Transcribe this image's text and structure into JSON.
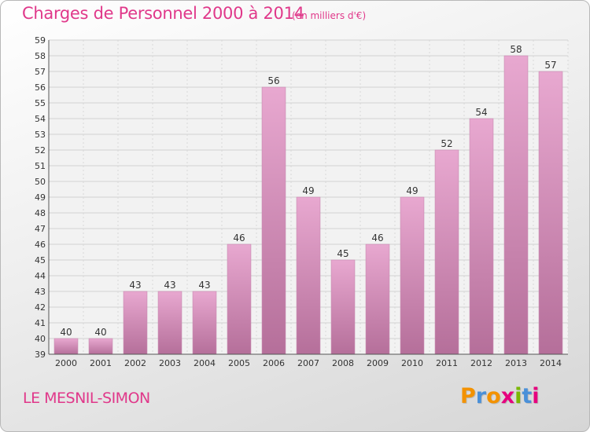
{
  "header": {
    "title": "Charges de Personnel 2000 à 2014",
    "unit": "(en milliers d'€)"
  },
  "footer": {
    "commune": "LE MESNIL-SIMON",
    "logo_text": "Proxiti"
  },
  "colors": {
    "accent": "#e0388a",
    "bar_top": "#e8a8d0",
    "bar_bottom": "#b56f9a",
    "logo_letters": [
      "#f39200",
      "#4a90d9",
      "#f39200",
      "#e6007e",
      "#7ab800",
      "#4a90d9",
      "#e6007e"
    ]
  },
  "chart_data": {
    "type": "bar",
    "categories": [
      "2000",
      "2001",
      "2002",
      "2003",
      "2004",
      "2005",
      "2006",
      "2007",
      "2008",
      "2009",
      "2010",
      "2011",
      "2012",
      "2013",
      "2014"
    ],
    "values": [
      40,
      40,
      43,
      43,
      43,
      46,
      56,
      49,
      45,
      46,
      49,
      52,
      54,
      58,
      57
    ],
    "ylim": [
      39,
      59
    ],
    "yticks": [
      39,
      40,
      41,
      42,
      43,
      44,
      45,
      46,
      47,
      48,
      49,
      50,
      51,
      52,
      53,
      54,
      55,
      56,
      57,
      58,
      59
    ],
    "grid": true,
    "data_labels": true
  }
}
